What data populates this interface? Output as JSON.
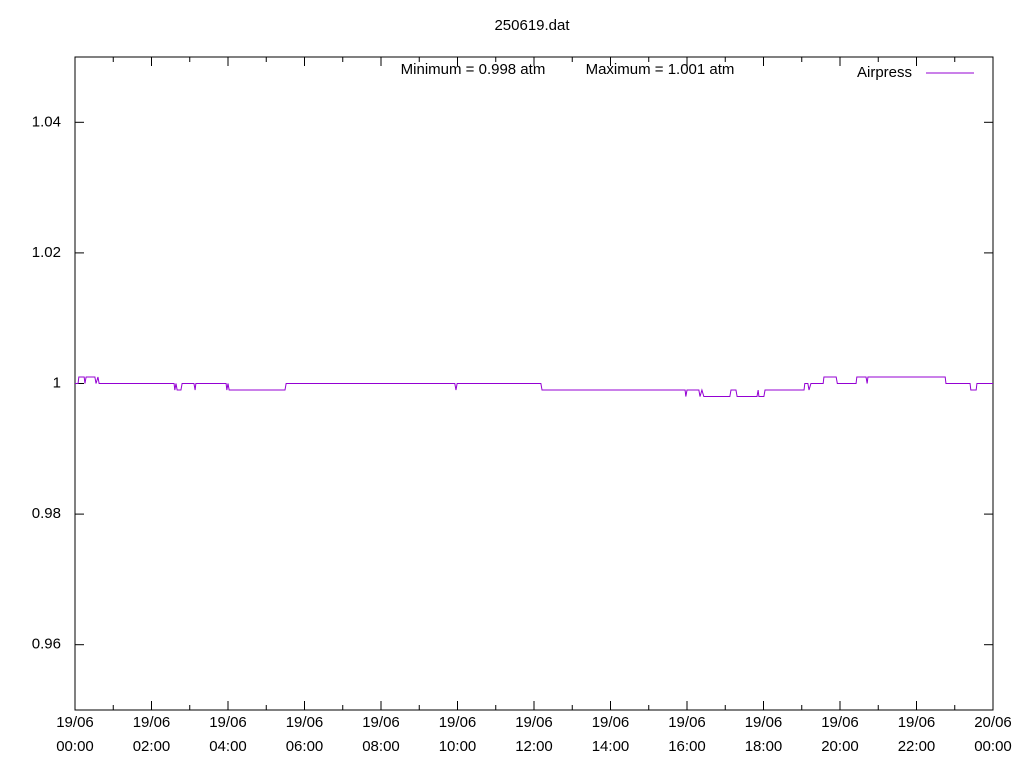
{
  "chart_data": {
    "type": "line",
    "title": "250619.dat",
    "annotations": [
      "Minimum = 0.998 atm",
      "Maximum = 1.001 atm"
    ],
    "x": [
      0,
      0.08,
      0.1,
      0.24,
      0.26,
      0.29,
      0.52,
      0.55,
      0.6,
      0.63,
      2.59,
      2.61,
      2.64,
      2.67,
      2.77,
      2.8,
      3.11,
      3.14,
      3.16,
      3.95,
      3.97,
      4.0,
      4.03,
      5.49,
      5.52,
      9.93,
      9.96,
      9.99,
      12.18,
      12.21,
      15.95,
      15.97,
      16.0,
      16.31,
      16.34,
      16.39,
      16.44,
      17.12,
      17.15,
      17.28,
      17.31,
      17.83,
      17.86,
      17.88,
      18.01,
      18.04,
      19.06,
      19.08,
      19.16,
      19.19,
      19.24,
      19.56,
      19.58,
      19.9,
      19.93,
      20.42,
      20.44,
      20.68,
      20.71,
      20.73,
      22.75,
      22.77,
      23.4,
      23.42,
      23.56,
      23.58,
      24.0
    ],
    "series": [
      {
        "name": "Airpress",
        "color": "#9400d3",
        "values": [
          1.0,
          1.0,
          1.001,
          1.001,
          1.0,
          1.001,
          1.001,
          1.0,
          1.001,
          1.0,
          1.0,
          0.999,
          1.0,
          0.999,
          0.999,
          1.0,
          1.0,
          0.999,
          1.0,
          1.0,
          0.999,
          1.0,
          0.999,
          0.999,
          1.0,
          1.0,
          0.999,
          1.0,
          1.0,
          0.999,
          0.999,
          0.998,
          0.999,
          0.999,
          0.998,
          0.999,
          0.998,
          0.998,
          0.999,
          0.999,
          0.998,
          0.998,
          0.999,
          0.998,
          0.998,
          0.999,
          0.999,
          1.0,
          1.0,
          0.999,
          1.0,
          1.0,
          1.001,
          1.001,
          1.0,
          1.0,
          1.001,
          1.001,
          1.0,
          1.001,
          1.001,
          1.0,
          1.0,
          0.999,
          0.999,
          1.0,
          1.0
        ]
      }
    ],
    "xlim": [
      0,
      24
    ],
    "xticks": [
      {
        "value": 0,
        "label": [
          "19/06",
          "00:00"
        ]
      },
      {
        "value": 2,
        "label": [
          "19/06",
          "02:00"
        ]
      },
      {
        "value": 4,
        "label": [
          "19/06",
          "04:00"
        ]
      },
      {
        "value": 6,
        "label": [
          "19/06",
          "06:00"
        ]
      },
      {
        "value": 8,
        "label": [
          "19/06",
          "08:00"
        ]
      },
      {
        "value": 10,
        "label": [
          "19/06",
          "10:00"
        ]
      },
      {
        "value": 12,
        "label": [
          "19/06",
          "12:00"
        ]
      },
      {
        "value": 14,
        "label": [
          "19/06",
          "14:00"
        ]
      },
      {
        "value": 16,
        "label": [
          "19/06",
          "16:00"
        ]
      },
      {
        "value": 18,
        "label": [
          "19/06",
          "18:00"
        ]
      },
      {
        "value": 20,
        "label": [
          "19/06",
          "20:00"
        ]
      },
      {
        "value": 22,
        "label": [
          "19/06",
          "22:00"
        ]
      },
      {
        "value": 24,
        "label": [
          "20/06",
          "00:00"
        ]
      }
    ],
    "xminorticks": [
      1,
      3,
      5,
      7,
      9,
      11,
      13,
      15,
      17,
      19,
      21,
      23
    ],
    "ylim": [
      0.95,
      1.05
    ],
    "yticks": [
      0.96,
      0.98,
      1,
      1.02,
      1.04
    ],
    "grid": false,
    "legend": "top-right"
  }
}
